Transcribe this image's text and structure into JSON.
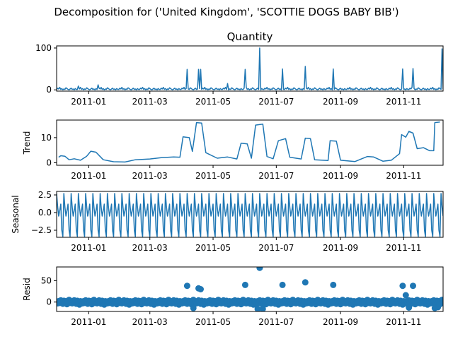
{
  "figure": {
    "title": "Decomposition for ('United Kingdom', 'SCOTTIE DOGS BABY BIB')"
  },
  "chart_data": [
    {
      "type": "line",
      "panel": "observed",
      "title": "Quantity",
      "ylabel": "",
      "x_start": "2010-12-01",
      "x_end": "2011-12-09",
      "xticks": [
        "2011-01",
        "2011-03",
        "2011-05",
        "2011-07",
        "2011-09",
        "2011-11"
      ],
      "yticks": [
        0,
        100
      ],
      "ylim": [
        -3,
        105
      ],
      "baseline": [
        1,
        4,
        2,
        6,
        1,
        3,
        0,
        2,
        1,
        5,
        3,
        1,
        0,
        2,
        4,
        1,
        2,
        0,
        3,
        1
      ],
      "spikes": [
        {
          "date": "2010-12-22",
          "value": 9
        },
        {
          "date": "2011-01-10",
          "value": 12
        },
        {
          "date": "2011-04-06",
          "value": 49
        },
        {
          "date": "2011-04-17",
          "value": 49
        },
        {
          "date": "2011-04-19",
          "value": 49
        },
        {
          "date": "2011-05-15",
          "value": 15
        },
        {
          "date": "2011-06-01",
          "value": 49
        },
        {
          "date": "2011-06-15",
          "value": 100
        },
        {
          "date": "2011-07-07",
          "value": 50
        },
        {
          "date": "2011-07-29",
          "value": 56
        },
        {
          "date": "2011-08-25",
          "value": 50
        },
        {
          "date": "2011-10-31",
          "value": 50
        },
        {
          "date": "2011-11-10",
          "value": 51
        },
        {
          "date": "2011-12-08",
          "value": 98
        }
      ]
    },
    {
      "type": "line",
      "panel": "trend",
      "title": "",
      "ylabel": "Trend",
      "x_start": "2010-12-01",
      "x_end": "2011-12-09",
      "xticks": [
        "2011-01",
        "2011-03",
        "2011-05",
        "2011-07",
        "2011-09",
        "2011-11"
      ],
      "yticks": [
        0,
        10
      ],
      "ylim": [
        -1,
        17
      ],
      "points": [
        [
          "2010-12-03",
          2.2
        ],
        [
          "2010-12-05",
          2.8
        ],
        [
          "2010-12-09",
          2.6
        ],
        [
          "2010-12-13",
          1.2
        ],
        [
          "2010-12-18",
          1.6
        ],
        [
          "2010-12-24",
          1.0
        ],
        [
          "2010-12-30",
          2.6
        ],
        [
          "2011-01-03",
          4.6
        ],
        [
          "2011-01-08",
          4.2
        ],
        [
          "2011-01-15",
          1.2
        ],
        [
          "2011-01-25",
          0.4
        ],
        [
          "2011-02-05",
          0.3
        ],
        [
          "2011-02-15",
          1.2
        ],
        [
          "2011-03-01",
          1.5
        ],
        [
          "2011-03-12",
          2.0
        ],
        [
          "2011-03-24",
          2.3
        ],
        [
          "2011-03-30",
          2.2
        ],
        [
          "2011-04-02",
          10.3
        ],
        [
          "2011-04-08",
          10.0
        ],
        [
          "2011-04-11",
          4.5
        ],
        [
          "2011-04-15",
          16.0
        ],
        [
          "2011-04-20",
          15.8
        ],
        [
          "2011-04-24",
          4.0
        ],
        [
          "2011-05-05",
          1.8
        ],
        [
          "2011-05-15",
          2.3
        ],
        [
          "2011-05-24",
          1.5
        ],
        [
          "2011-05-28",
          7.8
        ],
        [
          "2011-06-03",
          7.5
        ],
        [
          "2011-06-07",
          1.8
        ],
        [
          "2011-06-11",
          15.0
        ],
        [
          "2011-06-18",
          15.4
        ],
        [
          "2011-06-22",
          2.5
        ],
        [
          "2011-06-28",
          1.6
        ],
        [
          "2011-07-03",
          8.8
        ],
        [
          "2011-07-10",
          9.6
        ],
        [
          "2011-07-14",
          2.2
        ],
        [
          "2011-07-25",
          1.5
        ],
        [
          "2011-07-29",
          9.8
        ],
        [
          "2011-08-03",
          9.6
        ],
        [
          "2011-08-07",
          1.2
        ],
        [
          "2011-08-20",
          0.9
        ],
        [
          "2011-08-22",
          8.8
        ],
        [
          "2011-08-28",
          8.6
        ],
        [
          "2011-09-01",
          1.0
        ],
        [
          "2011-09-15",
          0.5
        ],
        [
          "2011-09-27",
          2.5
        ],
        [
          "2011-10-03",
          2.3
        ],
        [
          "2011-10-12",
          0.6
        ],
        [
          "2011-10-20",
          1.0
        ],
        [
          "2011-10-28",
          3.6
        ],
        [
          "2011-10-30",
          11.2
        ],
        [
          "2011-11-03",
          10.2
        ],
        [
          "2011-11-06",
          12.5
        ],
        [
          "2011-11-10",
          11.8
        ],
        [
          "2011-11-14",
          5.6
        ],
        [
          "2011-11-20",
          6.0
        ],
        [
          "2011-11-26",
          4.8
        ],
        [
          "2011-11-30",
          4.8
        ],
        [
          "2011-12-01",
          16.0
        ],
        [
          "2011-12-06",
          16.2
        ]
      ]
    },
    {
      "type": "line",
      "panel": "seasonal",
      "title": "",
      "ylabel": "Seasonal",
      "x_start": "2010-12-01",
      "x_end": "2011-12-09",
      "xticks": [
        "2011-01",
        "2011-03",
        "2011-05",
        "2011-07",
        "2011-09",
        "2011-11"
      ],
      "yticks": [
        2.5,
        0.0,
        -2.5
      ],
      "ytick_labels": [
        "2.5",
        "0.0",
        "−2.5"
      ],
      "ylim": [
        -3.5,
        3
      ],
      "period_days": 7,
      "weekly_pattern": [
        2.7,
        0.8,
        -0.5,
        0.3,
        1.2,
        -2.5,
        -3.4
      ]
    },
    {
      "type": "scatter",
      "panel": "resid",
      "title": "",
      "ylabel": "Resid",
      "x_start": "2010-12-01",
      "x_end": "2011-12-09",
      "xticks": [
        "2011-01",
        "2011-03",
        "2011-05",
        "2011-07",
        "2011-09",
        "2011-11"
      ],
      "yticks": [
        50,
        0
      ],
      "ylim": [
        -22,
        82
      ],
      "base_pattern": [
        1,
        -3,
        2,
        -2,
        4,
        0,
        -4,
        3,
        -1,
        2,
        -5,
        1,
        5,
        -2,
        0,
        -3,
        2,
        4,
        -1,
        -4,
        3,
        0,
        -6,
        2
      ],
      "outliers": [
        {
          "date": "2011-04-06",
          "value": 38
        },
        {
          "date": "2011-04-17",
          "value": 32
        },
        {
          "date": "2011-04-19",
          "value": 30
        },
        {
          "date": "2011-04-12",
          "value": -14
        },
        {
          "date": "2011-06-01",
          "value": 40
        },
        {
          "date": "2011-06-15",
          "value": 80
        },
        {
          "date": "2011-06-13",
          "value": -16
        },
        {
          "date": "2011-06-18",
          "value": -16
        },
        {
          "date": "2011-07-07",
          "value": 40
        },
        {
          "date": "2011-07-29",
          "value": 46
        },
        {
          "date": "2011-08-25",
          "value": 40
        },
        {
          "date": "2011-10-31",
          "value": 38
        },
        {
          "date": "2011-11-10",
          "value": 38
        },
        {
          "date": "2011-11-06",
          "value": -13
        },
        {
          "date": "2011-11-03",
          "value": 16
        },
        {
          "date": "2011-12-04",
          "value": -12
        },
        {
          "date": "2011-12-01",
          "value": -14
        }
      ]
    }
  ],
  "colors": {
    "series": "#1f77b4",
    "axis": "#000000",
    "background": "#ffffff"
  }
}
